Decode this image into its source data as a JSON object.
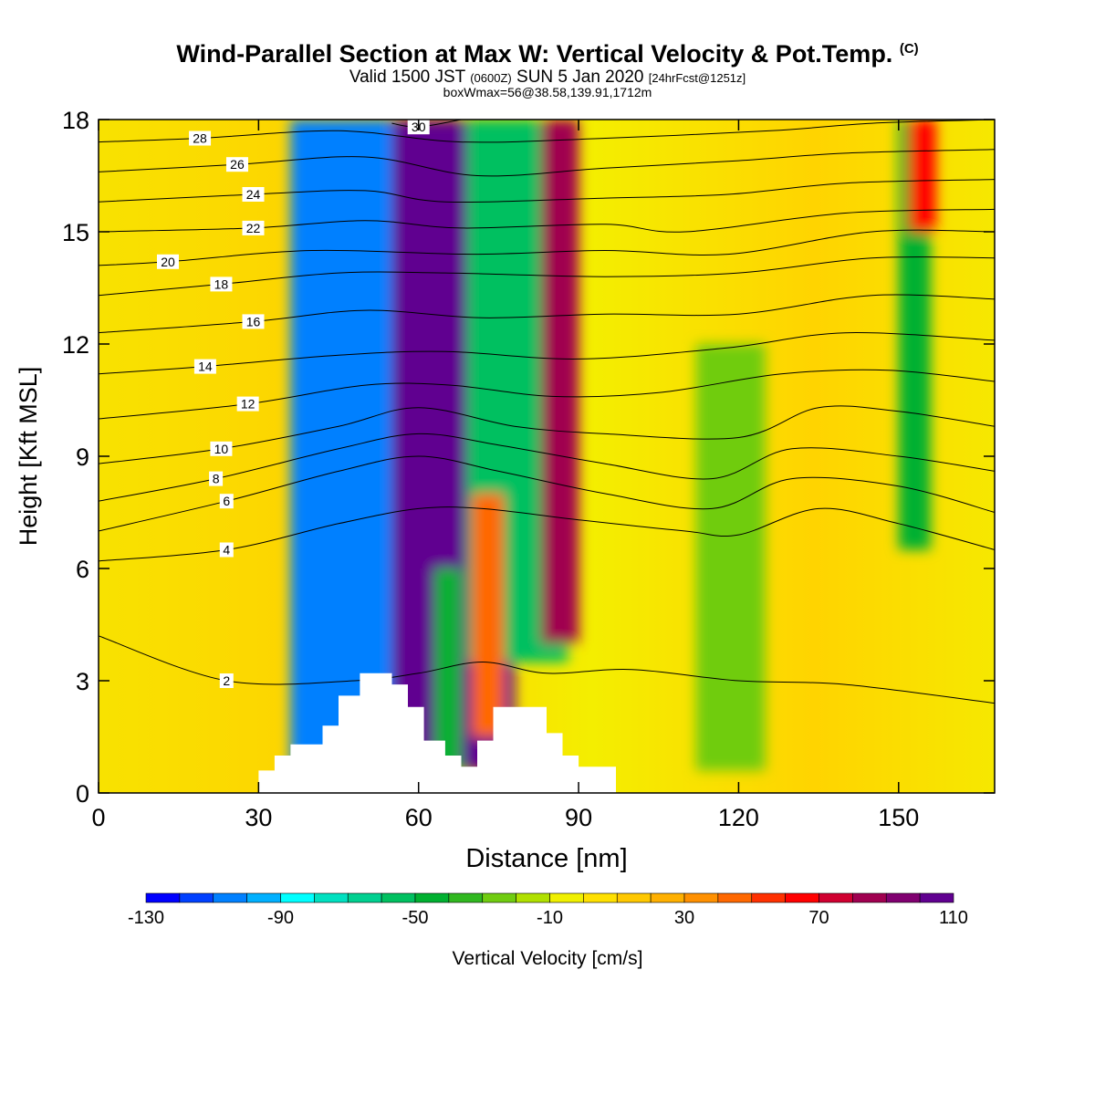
{
  "title": {
    "main": "Wind-Parallel Section at Max W: Vertical Velocity & Pot.Temp.",
    "copyright": "(C)",
    "valid_prefix": "Valid 1500 JST",
    "zulu": "(0600Z)",
    "valid_date": "SUN 5 Jan 2020",
    "forecast": "[24hrFcst@1251z]",
    "box": "boxWmax=56@38.58,139.91,1712m"
  },
  "chart_data": {
    "type": "heatmap",
    "xlabel": "Distance [nm]",
    "ylabel": "Height [Kft MSL]",
    "xlim": [
      0,
      168
    ],
    "ylim": [
      0,
      18
    ],
    "x_ticks": [
      0,
      30,
      60,
      90,
      120,
      150
    ],
    "y_ticks": [
      0,
      3,
      6,
      9,
      12,
      15,
      18
    ],
    "colorbar": {
      "label": "Vertical Velocity [cm/s]",
      "tick_labels": [
        -130,
        -90,
        -50,
        -10,
        30,
        70,
        110
      ],
      "colors": [
        "#0000ff",
        "#0040ff",
        "#0080ff",
        "#00b0ff",
        "#00ffff",
        "#00e0c0",
        "#00d090",
        "#00c060",
        "#00b030",
        "#30b820",
        "#70cc10",
        "#b0e000",
        "#f0f000",
        "#ffe000",
        "#ffc800",
        "#ffb000",
        "#ff9000",
        "#ff6800",
        "#ff3000",
        "#ff0000",
        "#d00030",
        "#a00050",
        "#800070",
        "#600090"
      ]
    },
    "velocity_bands": [
      {
        "x": [
          36,
          72
        ],
        "z": [
          0.6,
          18.0
        ],
        "w": -110,
        "note": "downdraft"
      },
      {
        "x": [
          55,
          78
        ],
        "z": [
          0.6,
          18.0
        ],
        "w": 100,
        "note": "updraft"
      },
      {
        "x": [
          69,
          88
        ],
        "z": [
          3.5,
          18.0
        ],
        "w": -60
      },
      {
        "x": [
          83,
          90
        ],
        "z": [
          4.0,
          18.0
        ],
        "w": 80
      },
      {
        "x": [
          63,
          68
        ],
        "z": [
          0.6,
          6.0
        ],
        "w": -50
      },
      {
        "x": [
          70,
          76
        ],
        "z": [
          1.5,
          8.0
        ],
        "w": 40
      },
      {
        "x": [
          112,
          125
        ],
        "z": [
          0.6,
          12.0
        ],
        "w": -30
      },
      {
        "x": [
          150,
          156
        ],
        "z": [
          6.5,
          18.0
        ],
        "w": -50
      },
      {
        "x": [
          152,
          157
        ],
        "z": [
          15.0,
          18.0
        ],
        "w": 60
      }
    ],
    "terrain": [
      [
        30,
        0
      ],
      [
        30,
        0.6
      ],
      [
        33,
        0.6
      ],
      [
        33,
        1.0
      ],
      [
        36,
        1.0
      ],
      [
        36,
        1.3
      ],
      [
        42,
        1.3
      ],
      [
        42,
        1.8
      ],
      [
        45,
        1.8
      ],
      [
        45,
        2.6
      ],
      [
        49,
        2.6
      ],
      [
        49,
        3.2
      ],
      [
        55,
        3.2
      ],
      [
        55,
        2.9
      ],
      [
        58,
        2.9
      ],
      [
        58,
        2.3
      ],
      [
        61,
        2.3
      ],
      [
        61,
        1.4
      ],
      [
        65,
        1.4
      ],
      [
        65,
        1.0
      ],
      [
        68,
        1.0
      ],
      [
        68,
        0.7
      ],
      [
        71,
        0.7
      ],
      [
        71,
        1.4
      ],
      [
        74,
        1.4
      ],
      [
        74,
        2.3
      ],
      [
        84,
        2.3
      ],
      [
        84,
        1.6
      ],
      [
        87,
        1.6
      ],
      [
        87,
        1.0
      ],
      [
        90,
        1.0
      ],
      [
        90,
        0.7
      ],
      [
        97,
        0.7
      ],
      [
        97,
        0
      ]
    ],
    "theta_contours": [
      {
        "label": "2",
        "pts": [
          [
            0,
            4.2
          ],
          [
            24,
            3.0
          ],
          [
            48,
            3.0
          ],
          [
            60,
            3.2
          ],
          [
            72,
            3.5
          ],
          [
            84,
            3.2
          ],
          [
            100,
            3.3
          ],
          [
            120,
            3.0
          ],
          [
            140,
            2.9
          ],
          [
            168,
            2.4
          ]
        ]
      },
      {
        "label": "4",
        "pts": [
          [
            0,
            6.2
          ],
          [
            24,
            6.5
          ],
          [
            45,
            7.2
          ],
          [
            60,
            7.6
          ],
          [
            72,
            7.6
          ],
          [
            90,
            7.3
          ],
          [
            110,
            7.0
          ],
          [
            120,
            6.9
          ],
          [
            135,
            7.6
          ],
          [
            150,
            7.2
          ],
          [
            168,
            6.5
          ]
        ]
      },
      {
        "label": "6",
        "pts": [
          [
            0,
            7.0
          ],
          [
            24,
            7.8
          ],
          [
            45,
            8.6
          ],
          [
            60,
            9.0
          ],
          [
            75,
            8.6
          ],
          [
            95,
            8.0
          ],
          [
            115,
            7.6
          ],
          [
            130,
            8.4
          ],
          [
            150,
            8.2
          ],
          [
            168,
            7.5
          ]
        ]
      },
      {
        "label": "8",
        "pts": [
          [
            0,
            7.8
          ],
          [
            22,
            8.4
          ],
          [
            45,
            9.2
          ],
          [
            60,
            9.6
          ],
          [
            75,
            9.3
          ],
          [
            95,
            8.8
          ],
          [
            115,
            8.4
          ],
          [
            130,
            9.2
          ],
          [
            150,
            9.0
          ],
          [
            168,
            8.6
          ]
        ]
      },
      {
        "label": "10",
        "pts": [
          [
            0,
            8.8
          ],
          [
            23,
            9.2
          ],
          [
            45,
            9.8
          ],
          [
            60,
            10.3
          ],
          [
            78,
            9.8
          ],
          [
            95,
            9.6
          ],
          [
            120,
            9.5
          ],
          [
            135,
            10.3
          ],
          [
            150,
            10.2
          ],
          [
            168,
            9.8
          ]
        ]
      },
      {
        "label": "12",
        "pts": [
          [
            0,
            10.0
          ],
          [
            28,
            10.4
          ],
          [
            50,
            10.9
          ],
          [
            66,
            10.9
          ],
          [
            85,
            10.6
          ],
          [
            105,
            10.7
          ],
          [
            128,
            11.2
          ],
          [
            148,
            11.3
          ],
          [
            168,
            11.0
          ]
        ]
      },
      {
        "label": "14",
        "pts": [
          [
            0,
            11.2
          ],
          [
            20,
            11.4
          ],
          [
            45,
            11.7
          ],
          [
            65,
            11.8
          ],
          [
            90,
            11.6
          ],
          [
            118,
            11.9
          ],
          [
            140,
            12.3
          ],
          [
            168,
            12.1
          ]
        ]
      },
      {
        "label": "16",
        "pts": [
          [
            0,
            12.3
          ],
          [
            29,
            12.6
          ],
          [
            50,
            12.9
          ],
          [
            72,
            12.7
          ],
          [
            95,
            12.8
          ],
          [
            120,
            12.8
          ],
          [
            145,
            13.3
          ],
          [
            168,
            13.2
          ]
        ]
      },
      {
        "label": "18",
        "pts": [
          [
            0,
            13.3
          ],
          [
            23,
            13.6
          ],
          [
            45,
            13.9
          ],
          [
            65,
            13.9
          ],
          [
            95,
            13.8
          ],
          [
            120,
            13.9
          ],
          [
            145,
            14.3
          ],
          [
            168,
            14.3
          ]
        ]
      },
      {
        "label": "20",
        "pts": [
          [
            0,
            14.1
          ],
          [
            13,
            14.2
          ],
          [
            40,
            14.5
          ],
          [
            70,
            14.4
          ],
          [
            95,
            14.5
          ],
          [
            118,
            14.4
          ],
          [
            145,
            15.0
          ],
          [
            168,
            15.0
          ]
        ]
      },
      {
        "label": "22",
        "pts": [
          [
            0,
            15.0
          ],
          [
            29,
            15.1
          ],
          [
            50,
            15.3
          ],
          [
            68,
            15.1
          ],
          [
            95,
            15.2
          ],
          [
            110,
            15.0
          ],
          [
            140,
            15.5
          ],
          [
            168,
            15.6
          ]
        ]
      },
      {
        "label": "24",
        "pts": [
          [
            0,
            15.8
          ],
          [
            29,
            16.0
          ],
          [
            50,
            16.1
          ],
          [
            65,
            15.8
          ],
          [
            95,
            15.9
          ],
          [
            118,
            16.0
          ],
          [
            140,
            16.3
          ],
          [
            168,
            16.4
          ]
        ]
      },
      {
        "label": "26",
        "pts": [
          [
            0,
            16.6
          ],
          [
            26,
            16.8
          ],
          [
            50,
            17.0
          ],
          [
            71,
            16.5
          ],
          [
            95,
            16.7
          ],
          [
            120,
            16.9
          ],
          [
            140,
            17.1
          ],
          [
            168,
            17.2
          ]
        ]
      },
      {
        "label": "28",
        "pts": [
          [
            0,
            17.4
          ],
          [
            19,
            17.5
          ],
          [
            45,
            17.7
          ],
          [
            68,
            17.4
          ],
          [
            95,
            17.5
          ],
          [
            126,
            17.7
          ],
          [
            145,
            17.9
          ],
          [
            168,
            18.0
          ]
        ]
      },
      {
        "label": "30",
        "pts": [
          [
            55,
            17.9
          ],
          [
            60,
            17.8
          ],
          [
            68,
            18.0
          ]
        ]
      }
    ]
  }
}
